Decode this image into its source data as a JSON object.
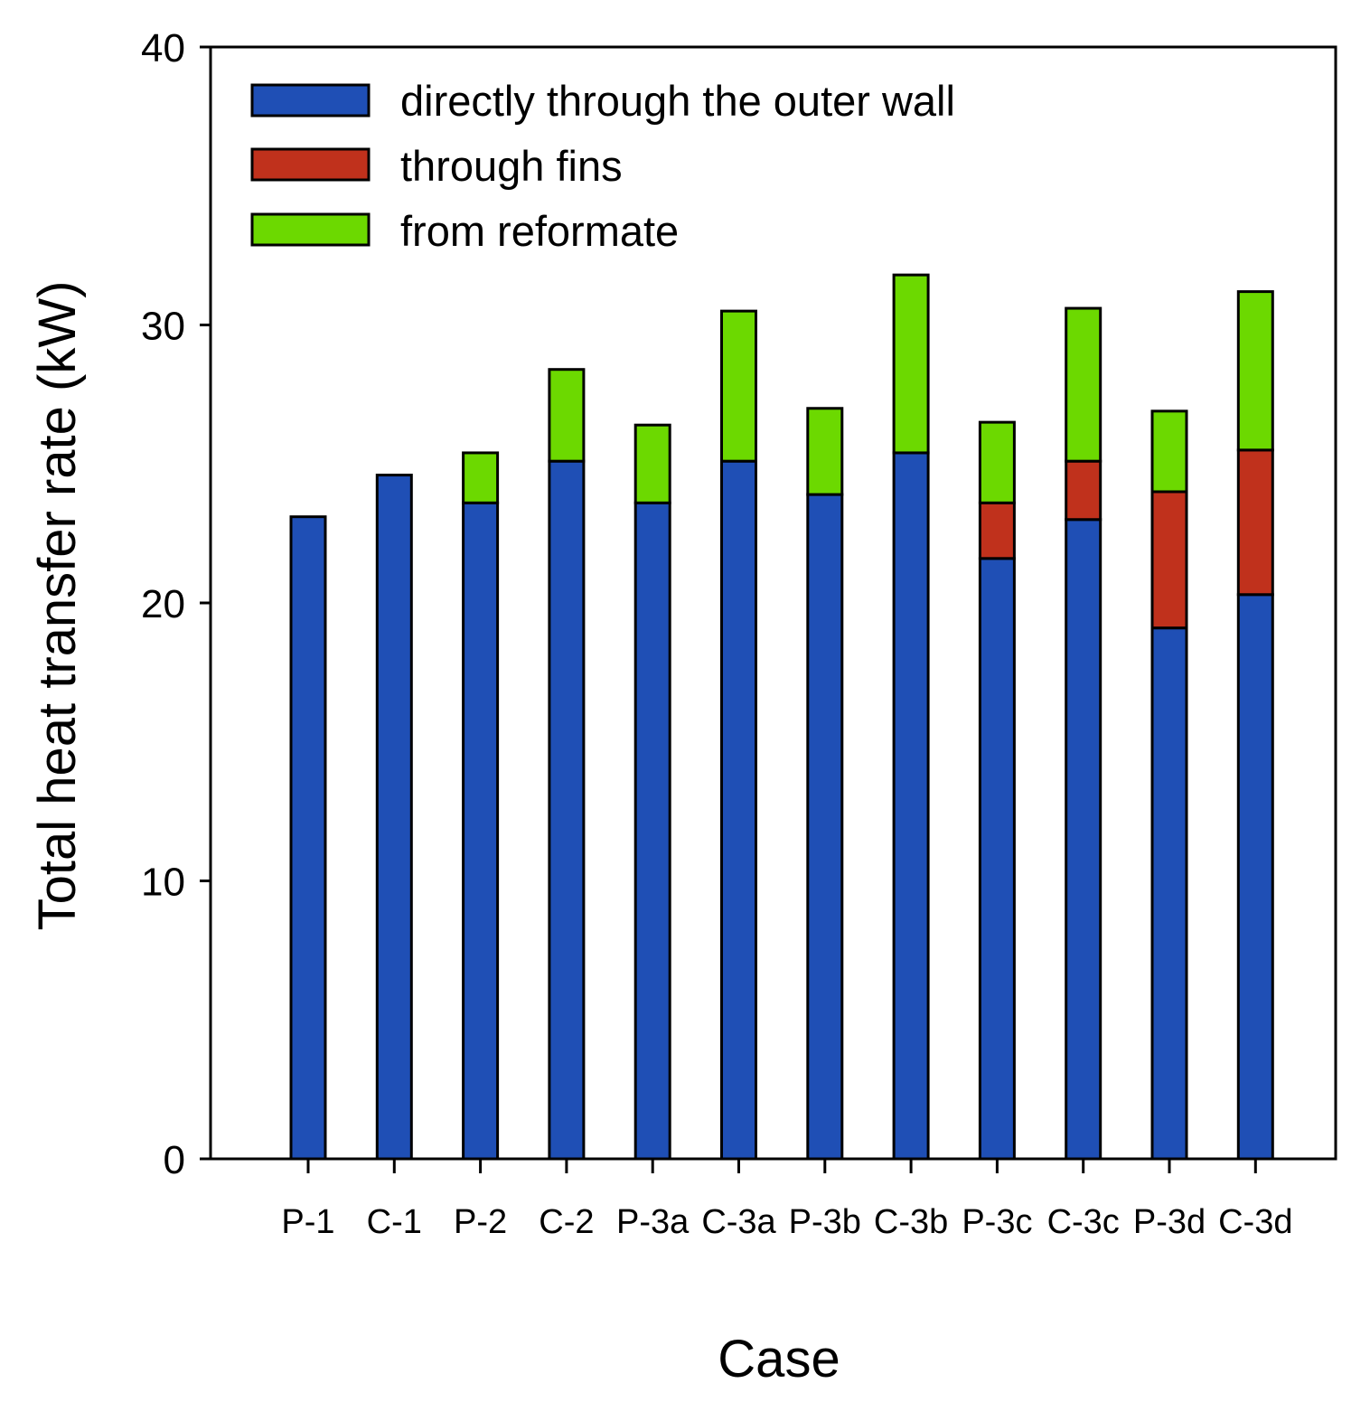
{
  "chart_data": {
    "type": "bar",
    "stacked": true,
    "title": "",
    "xlabel": "Case",
    "ylabel": "Total heat transfer rate (kW)",
    "ylim": [
      0,
      40
    ],
    "yticks": [
      0,
      10,
      20,
      30,
      40
    ],
    "grid": false,
    "legend_position": "top-left",
    "categories": [
      "P-1",
      "C-1",
      "P-2",
      "C-2",
      "P-3a",
      "C-3a",
      "P-3b",
      "C-3b",
      "P-3c",
      "C-3c",
      "P-3d",
      "C-3d"
    ],
    "series": [
      {
        "name": "directly through the outer wall",
        "color": "#1f4fb5",
        "values": [
          23.1,
          24.6,
          23.6,
          25.1,
          23.6,
          25.1,
          23.9,
          25.4,
          21.6,
          23.0,
          19.1,
          20.3
        ]
      },
      {
        "name": "through fins",
        "color": "#c0311c",
        "values": [
          0,
          0,
          0,
          0,
          0,
          0,
          0,
          0,
          2.0,
          2.1,
          4.9,
          5.2
        ]
      },
      {
        "name": "from reformate",
        "color": "#6cd900",
        "values": [
          0,
          0,
          1.8,
          3.3,
          2.8,
          5.4,
          3.1,
          6.4,
          2.9,
          5.5,
          2.9,
          5.7
        ]
      }
    ]
  }
}
